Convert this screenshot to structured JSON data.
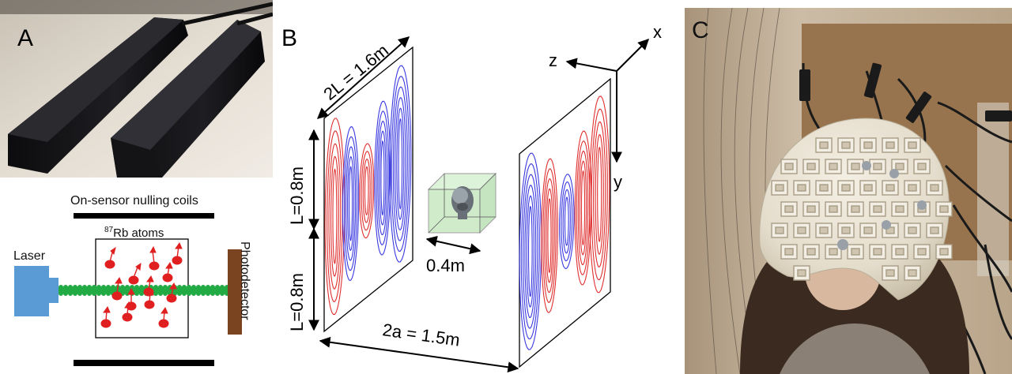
{
  "panels": {
    "a": {
      "letter": "A",
      "coils_label": "On-sensor nulling coils",
      "atoms_sup": "87",
      "atoms_label": "Rb atoms",
      "laser_label": "Laser",
      "photodetector_label": "Photodetector"
    },
    "b": {
      "letter": "B",
      "dim_2l": "2L = 1.6m",
      "dim_l_top": "L=0.8m",
      "dim_l_bottom": "L=0.8m",
      "dim_box": "0.4m",
      "dim_2a": "2a = 1.5m",
      "axis_x": "x",
      "axis_y": "y",
      "axis_z": "z"
    },
    "c": {
      "letter": "C"
    }
  },
  "colors": {
    "laser": "#5b9bd5",
    "beam": "#22aa44",
    "atoms": "#e02020",
    "photodetector": "#7a4420",
    "coil_red": "#e03030",
    "coil_blue": "#3a3ae0",
    "volume_green": "#a8dca0"
  }
}
